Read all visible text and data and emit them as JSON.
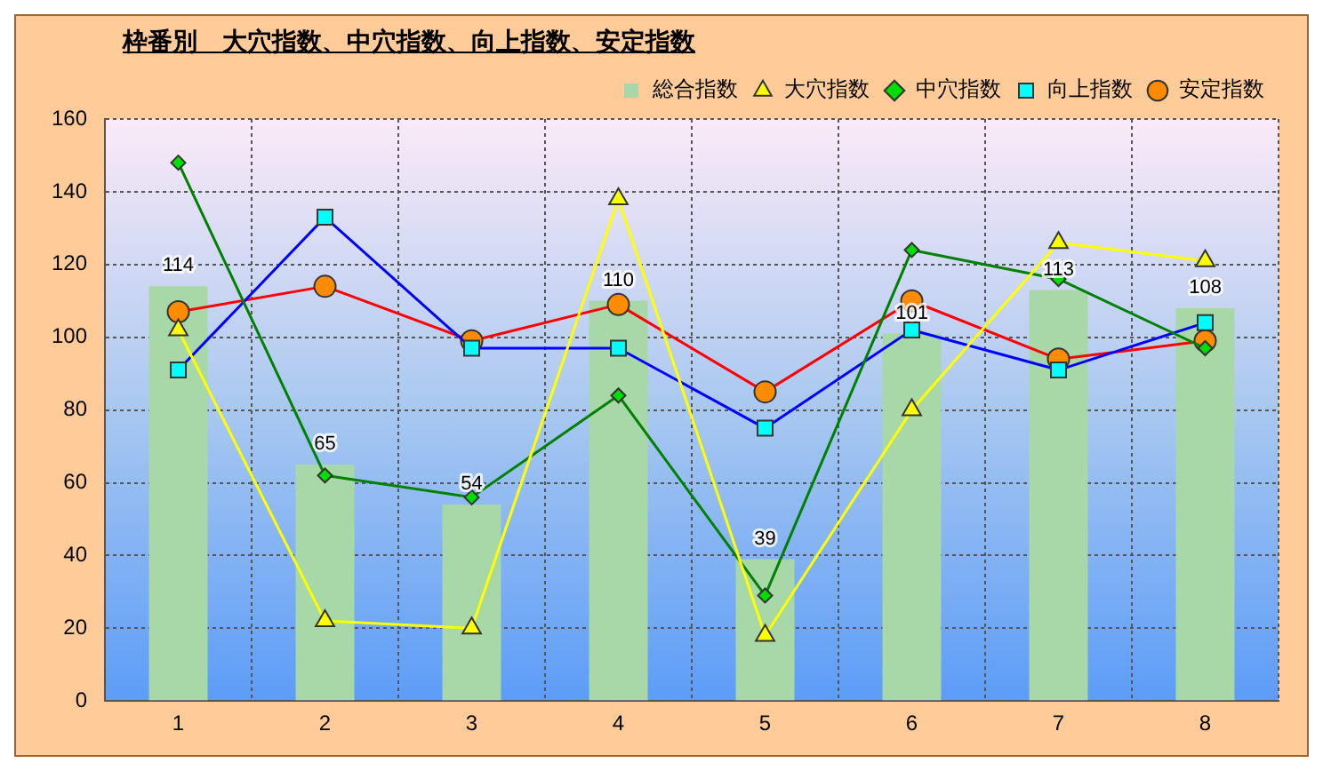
{
  "chart_data": {
    "type": "bar",
    "title": "枠番別　大穴指数、中穴指数、向上指数、安定指数",
    "categories": [
      "1",
      "2",
      "3",
      "4",
      "5",
      "6",
      "7",
      "8"
    ],
    "series": [
      {
        "name": "総合指数",
        "type": "bar",
        "color": "#a8d8a8",
        "values": [
          114,
          65,
          54,
          110,
          39,
          101,
          113,
          108
        ],
        "value_labels": [
          "114",
          "65",
          "54",
          "110",
          "39",
          "101",
          "113",
          "108"
        ]
      },
      {
        "name": "大穴指数",
        "type": "line",
        "color": "#ffff00",
        "marker": "triangle",
        "values": [
          102,
          22,
          20,
          138,
          18,
          80,
          126,
          121
        ]
      },
      {
        "name": "中穴指数",
        "type": "line",
        "color": "#008000",
        "marker": "diamond",
        "values": [
          148,
          62,
          56,
          84,
          29,
          124,
          116,
          97
        ]
      },
      {
        "name": "向上指数",
        "type": "line",
        "color": "#0000ff",
        "marker": "square",
        "values": [
          91,
          133,
          97,
          97,
          75,
          102,
          91,
          104
        ]
      },
      {
        "name": "安定指数",
        "type": "line",
        "color": "#ff0000",
        "marker": "circle",
        "values": [
          107,
          114,
          99,
          109,
          85,
          110,
          94,
          99
        ]
      }
    ],
    "ylim": [
      0,
      160
    ],
    "yticks": [
      0,
      20,
      40,
      60,
      80,
      100,
      120,
      140,
      160
    ],
    "grid": true,
    "legend": "top right"
  }
}
